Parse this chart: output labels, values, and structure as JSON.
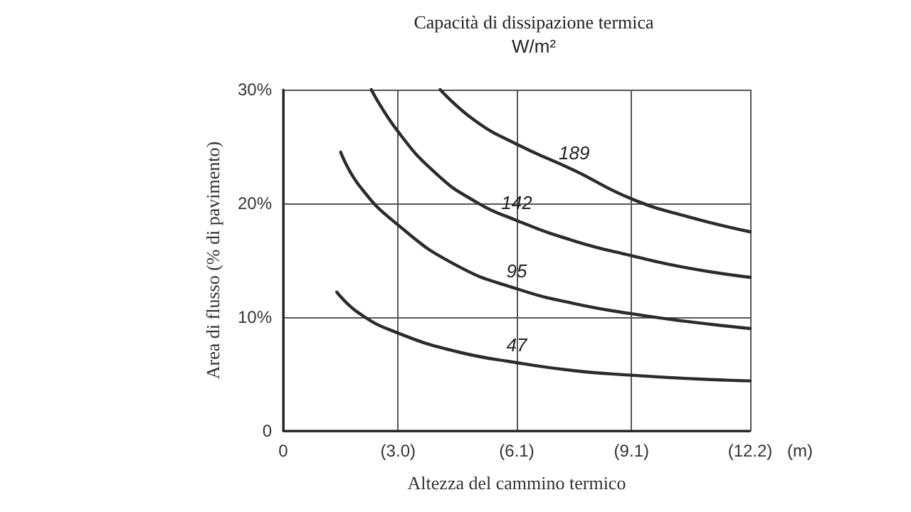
{
  "chart_data": {
    "type": "line",
    "title": "Capacità di dissipazione termica",
    "subtitle": "W/m²",
    "xlabel": "Altezza del cammino termico",
    "ylabel": "Area di flusso (% di pavimento)",
    "xlim": [
      0,
      12.2
    ],
    "xticks": [
      {
        "value": 0,
        "label": "0"
      },
      {
        "value": 3.0,
        "label": "(3.0)"
      },
      {
        "value": 6.1,
        "label": "(6.1)"
      },
      {
        "value": 9.1,
        "label": "(9.1)"
      },
      {
        "value": 12.2,
        "label": "(12.2)"
      }
    ],
    "ylim": [
      0,
      30
    ],
    "yticks": [
      {
        "value": 0,
        "label": "0"
      },
      {
        "value": 10,
        "label": "10%"
      },
      {
        "value": 20,
        "label": "20%"
      },
      {
        "value": 30,
        "label": "30%"
      }
    ],
    "grid": true,
    "marker": "none",
    "line_style": "solid",
    "series": [
      {
        "name": "47",
        "color": "#2b2b2b",
        "x": [
          1.4,
          2.0,
          3.0,
          4.5,
          6.1,
          7.6,
          9.1,
          10.6,
          12.2
        ],
        "values": [
          12.2,
          10.3,
          8.6,
          7.0,
          6.0,
          5.3,
          4.9,
          4.6,
          4.4
        ]
      },
      {
        "name": "95",
        "color": "#2b2b2b",
        "x": [
          1.5,
          2.0,
          3.0,
          4.5,
          6.1,
          7.6,
          9.1,
          10.6,
          12.2
        ],
        "values": [
          24.5,
          21.5,
          18.1,
          14.6,
          12.5,
          11.2,
          10.3,
          9.6,
          9.0
        ]
      },
      {
        "name": "142",
        "color": "#2b2b2b",
        "x": [
          2.3,
          3.0,
          4.0,
          5.0,
          6.1,
          7.6,
          9.1,
          10.6,
          12.2
        ],
        "values": [
          30,
          26.3,
          22.6,
          20.2,
          18.5,
          16.7,
          15.4,
          14.3,
          13.5
        ]
      },
      {
        "name": "189",
        "color": "#2b2b2b",
        "x": [
          4.1,
          5.0,
          6.1,
          7.6,
          9.1,
          10.6,
          12.2
        ],
        "values": [
          30,
          27.3,
          25.2,
          22.9,
          20.4,
          18.8,
          17.5
        ]
      }
    ],
    "annotations": [
      "(m)"
    ]
  }
}
